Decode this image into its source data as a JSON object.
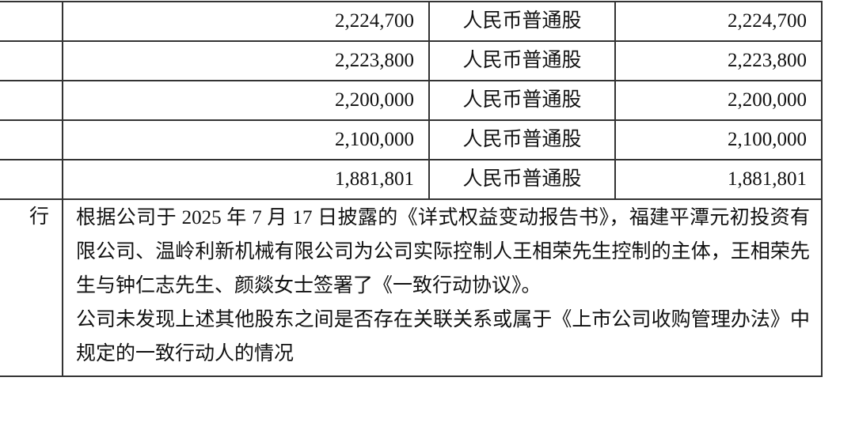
{
  "table": {
    "rows": [
      {
        "shares": "2,224,700",
        "type": "人民币普通股",
        "count": "2,224,700"
      },
      {
        "shares": "2,223,800",
        "type": "人民币普通股",
        "count": "2,223,800"
      },
      {
        "shares": "2,200,000",
        "type": "人民币普通股",
        "count": "2,200,000"
      },
      {
        "shares": "2,100,000",
        "type": "人民币普通股",
        "count": "2,100,000"
      },
      {
        "shares": "1,881,801",
        "type": "人民币普通股",
        "count": "1,881,801"
      }
    ],
    "note_label_fragment": "行",
    "note_paragraphs": [
      "根据公司于 2025 年 7 月 17 日披露的《详式权益变动报告书》，福建平潭元初投资有限公司、温岭利新机械有限公司为公司实际控制人王相荣先生控制的主体，王相荣先生与钟仁志先生、颜燚女士签署了《一致行动协议》。",
      "公司未发现上述其他股东之间是否存在关联关系或属于《上市公司收购管理办法》中规定的一致行动人的情况"
    ]
  }
}
